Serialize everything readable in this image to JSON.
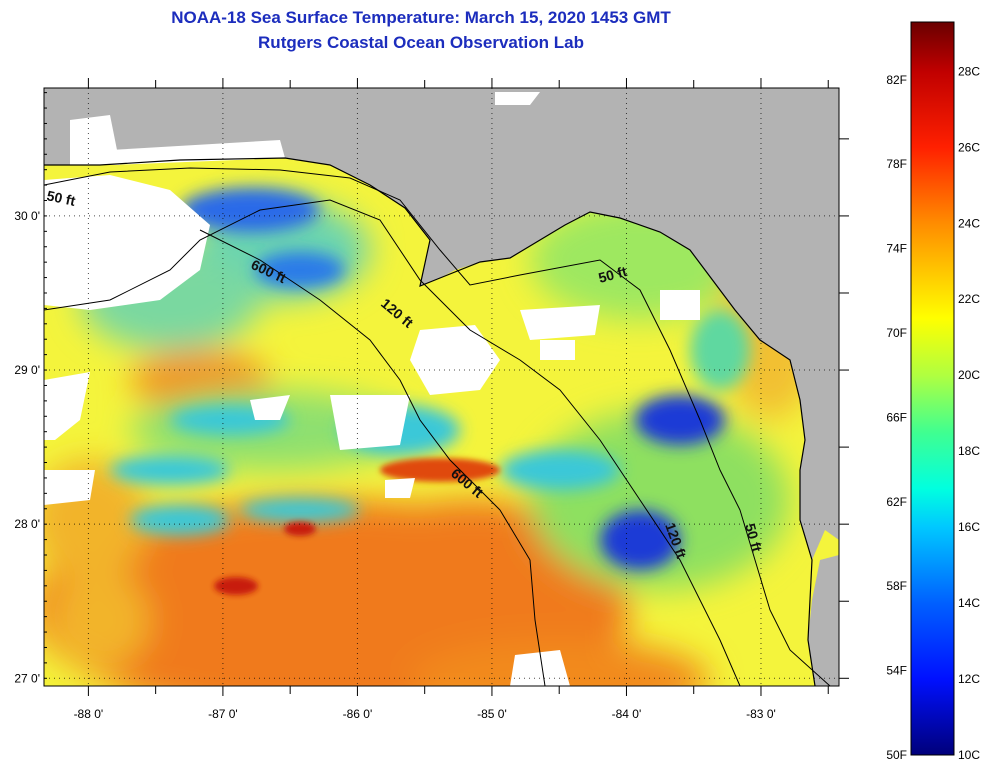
{
  "title": {
    "line1": "NOAA-18 Sea Surface Temperature:  March 15, 2020 1453 GMT",
    "line2": "Rutgers Coastal Ocean Observation Lab"
  },
  "axes": {
    "lon_labels": [
      "-88 0'",
      "-87 0'",
      "-86 0'",
      "-85 0'",
      "-84 0'",
      "-83 0'"
    ],
    "lat_labels": [
      "30 0'",
      "29 0'",
      "28 0'",
      "27 0'"
    ],
    "lon_range": [
      -88.33,
      -82.42
    ],
    "lat_range": [
      26.95,
      30.83
    ]
  },
  "colorbar": {
    "fahrenheit_labels": [
      "82F",
      "78F",
      "74F",
      "70F",
      "66F",
      "62F",
      "58F",
      "54F",
      "50F"
    ],
    "celsius_labels": [
      "28C",
      "26C",
      "24C",
      "22C",
      "20C",
      "18C",
      "16C",
      "14C",
      "12C",
      "10C"
    ],
    "range_c": [
      10,
      29.3
    ],
    "stops": [
      {
        "c": 10,
        "color": "#00007a"
      },
      {
        "c": 12,
        "color": "#0010ff"
      },
      {
        "c": 14,
        "color": "#0060ff"
      },
      {
        "c": 16,
        "color": "#00c8ff"
      },
      {
        "c": 17,
        "color": "#00ffe0"
      },
      {
        "c": 18.5,
        "color": "#40ff90"
      },
      {
        "c": 20,
        "color": "#b0ff40"
      },
      {
        "c": 21.5,
        "color": "#ffff00"
      },
      {
        "c": 24,
        "color": "#ff8c00"
      },
      {
        "c": 26,
        "color": "#ff2000"
      },
      {
        "c": 28,
        "color": "#c00000"
      },
      {
        "c": 29.3,
        "color": "#6a0000"
      }
    ]
  },
  "contours": [
    "50 ft",
    "600 ft",
    "120 ft",
    "50 ft",
    "600 ft",
    "120 ft",
    "50 ft"
  ],
  "colors": {
    "land": "#b3b3b3",
    "clouds": "#ffffff",
    "warm_sst": "#f07a1a",
    "mid_sst": "#f4f43c",
    "cool_sst": "#3ac8d8",
    "cold_sst": "#1f3bd6",
    "title": "#1c2dbd"
  }
}
